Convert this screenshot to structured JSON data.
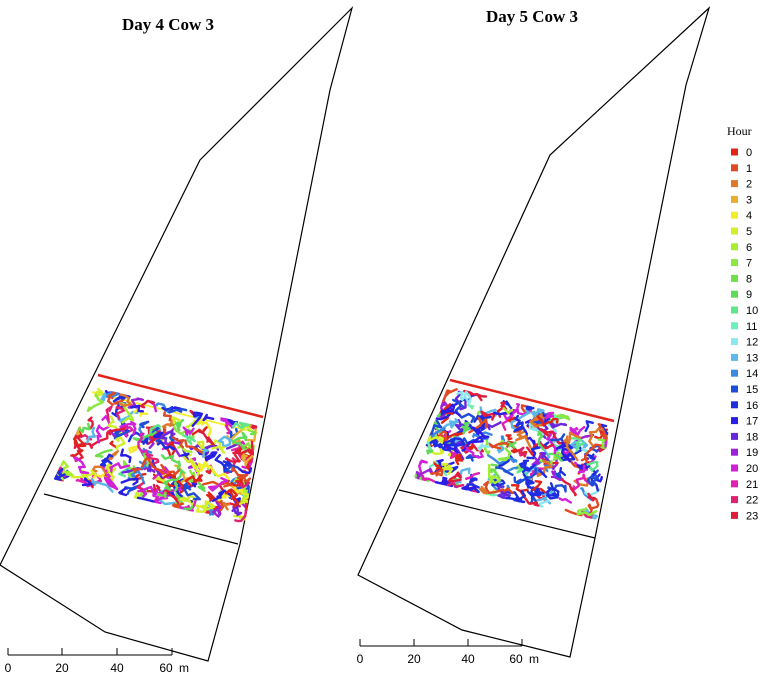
{
  "panels": [
    {
      "id": "day4",
      "title": "Day 4  Cow 3"
    },
    {
      "id": "day5",
      "title": "Day 5  Cow 3"
    }
  ],
  "scale_bar": {
    "ticks": [
      "0",
      "20",
      "40",
      "60"
    ],
    "unit": "m"
  },
  "legend": {
    "title": "Hour",
    "entries": [
      {
        "label": "0",
        "color": "#e0241a"
      },
      {
        "label": "1",
        "color": "#e04a22"
      },
      {
        "label": "2",
        "color": "#e0782a"
      },
      {
        "label": "3",
        "color": "#e6ad30"
      },
      {
        "label": "4",
        "color": "#f2ee2c"
      },
      {
        "label": "5",
        "color": "#d4ee2c"
      },
      {
        "label": "6",
        "color": "#a8ee30"
      },
      {
        "label": "7",
        "color": "#8ae840"
      },
      {
        "label": "8",
        "color": "#6fe04c"
      },
      {
        "label": "9",
        "color": "#5cdc58"
      },
      {
        "label": "10",
        "color": "#60e68a"
      },
      {
        "label": "11",
        "color": "#6eeeb8"
      },
      {
        "label": "12",
        "color": "#8ae8ee"
      },
      {
        "label": "13",
        "color": "#5cb8e8"
      },
      {
        "label": "14",
        "color": "#3a88e0"
      },
      {
        "label": "15",
        "color": "#1e4ed8"
      },
      {
        "label": "16",
        "color": "#1f2de0"
      },
      {
        "label": "17",
        "color": "#2a1ee6"
      },
      {
        "label": "18",
        "color": "#6a26dc"
      },
      {
        "label": "19",
        "color": "#9c22d8"
      },
      {
        "label": "20",
        "color": "#d020d8"
      },
      {
        "label": "21",
        "color": "#e020b0"
      },
      {
        "label": "22",
        "color": "#e02070"
      },
      {
        "label": "23",
        "color": "#e01c3c"
      }
    ]
  }
}
